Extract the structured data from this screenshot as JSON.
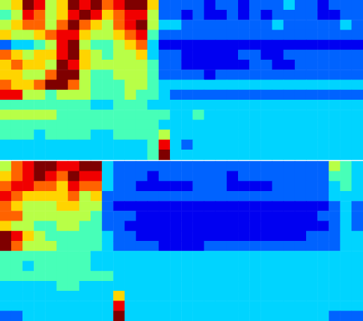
{
  "chart_data": [
    {
      "type": "heatmap",
      "color": "jet",
      "zlim": [
        0,
        9
      ],
      "tick_labels": false,
      "cells": [
        [
          5,
          6,
          9,
          8,
          5,
          6,
          9,
          8,
          9,
          7,
          8,
          9,
          9,
          6,
          2,
          2,
          2,
          2,
          1,
          2,
          2,
          1,
          2,
          2,
          2,
          3,
          2,
          2,
          1,
          2,
          2,
          2
        ],
        [
          4,
          5,
          8,
          7,
          5,
          6,
          8,
          9,
          8,
          6,
          7,
          8,
          8,
          5,
          2,
          2,
          1,
          2,
          1,
          1,
          2,
          1,
          2,
          1,
          2,
          2,
          2,
          2,
          1,
          1,
          2,
          2
        ],
        [
          5,
          6,
          7,
          7,
          5,
          7,
          9,
          7,
          6,
          5,
          7,
          8,
          9,
          5,
          3,
          3,
          2,
          2,
          2,
          2,
          2,
          2,
          2,
          2,
          3,
          2,
          2,
          2,
          2,
          2,
          3,
          2
        ],
        [
          6,
          5,
          5,
          6,
          7,
          8,
          8,
          6,
          5,
          5,
          6,
          7,
          8,
          4,
          2,
          2,
          2,
          2,
          2,
          2,
          2,
          2,
          2,
          2,
          2,
          2,
          2,
          2,
          2,
          2,
          2,
          2
        ],
        [
          2,
          3,
          3,
          4,
          5,
          8,
          9,
          5,
          4,
          4,
          5,
          6,
          7,
          3,
          1,
          1,
          1,
          1,
          1,
          1,
          1,
          1,
          1,
          1,
          1,
          1,
          1,
          1,
          1,
          1,
          1,
          1
        ],
        [
          7,
          6,
          5,
          6,
          6,
          8,
          9,
          6,
          5,
          4,
          5,
          5,
          6,
          3,
          2,
          2,
          1,
          1,
          1,
          1,
          1,
          2,
          2,
          1,
          1,
          2,
          2,
          2,
          2,
          2,
          2,
          2
        ],
        [
          6,
          7,
          6,
          6,
          5,
          9,
          8,
          6,
          5,
          5,
          5,
          5,
          5,
          4,
          2,
          2,
          1,
          1,
          1,
          1,
          1,
          1,
          2,
          2,
          1,
          1,
          2,
          2,
          2,
          2,
          2,
          2
        ],
        [
          6,
          6,
          5,
          5,
          7,
          9,
          9,
          5,
          4,
          4,
          5,
          5,
          5,
          4,
          2,
          2,
          2,
          2,
          1,
          2,
          2,
          2,
          2,
          2,
          2,
          2,
          2,
          2,
          2,
          2,
          2,
          2
        ],
        [
          7,
          6,
          6,
          7,
          9,
          9,
          7,
          5,
          4,
          4,
          4,
          5,
          5,
          4,
          3,
          3,
          3,
          3,
          3,
          3,
          3,
          3,
          3,
          3,
          3,
          3,
          3,
          3,
          3,
          3,
          3,
          3
        ],
        [
          8,
          8,
          5,
          5,
          4,
          5,
          5,
          5,
          4,
          4,
          4,
          5,
          4,
          4,
          3,
          2,
          2,
          2,
          2,
          2,
          2,
          2,
          2,
          2,
          2,
          2,
          2,
          2,
          2,
          2,
          2,
          2
        ],
        [
          4,
          4,
          4,
          4,
          4,
          4,
          4,
          4,
          3,
          3,
          4,
          4,
          4,
          3,
          3,
          3,
          3,
          3,
          3,
          3,
          3,
          3,
          3,
          3,
          3,
          3,
          3,
          3,
          3,
          3,
          3,
          3
        ],
        [
          5,
          5,
          5,
          5,
          5,
          4,
          4,
          4,
          4,
          4,
          4,
          4,
          4,
          4,
          4,
          3,
          3,
          4,
          3,
          3,
          3,
          3,
          3,
          3,
          3,
          3,
          3,
          3,
          3,
          3,
          3,
          3
        ],
        [
          4,
          4,
          4,
          4,
          4,
          4,
          4,
          4,
          4,
          4,
          4,
          4,
          4,
          4,
          3,
          3,
          3,
          3,
          3,
          3,
          3,
          3,
          3,
          3,
          3,
          3,
          3,
          3,
          3,
          3,
          3,
          3
        ],
        [
          4,
          4,
          4,
          3,
          4,
          4,
          4,
          4,
          3,
          3,
          4,
          4,
          4,
          4,
          5,
          3,
          3,
          3,
          3,
          3,
          3,
          3,
          3,
          3,
          3,
          3,
          3,
          3,
          3,
          3,
          3,
          3
        ],
        [
          3,
          3,
          3,
          3,
          3,
          3,
          3,
          3,
          3,
          3,
          3,
          3,
          3,
          4,
          8,
          3,
          2,
          3,
          3,
          3,
          3,
          3,
          3,
          3,
          3,
          3,
          3,
          3,
          3,
          3,
          3,
          3
        ],
        [
          3,
          3,
          3,
          3,
          3,
          3,
          3,
          3,
          3,
          3,
          3,
          3,
          3,
          4,
          9,
          3,
          3,
          3,
          3,
          3,
          3,
          3,
          3,
          3,
          3,
          3,
          3,
          3,
          3,
          3,
          3,
          3
        ]
      ]
    },
    {
      "type": "heatmap",
      "color": "jet",
      "zlim": [
        0,
        9
      ],
      "tick_labels": false,
      "cells": [
        [
          5,
          7,
          8,
          9,
          9,
          8,
          8,
          9,
          9,
          3,
          2,
          2,
          2,
          2,
          2,
          2,
          2,
          2,
          2,
          2,
          2,
          2,
          2,
          2,
          2,
          2,
          2,
          2,
          2,
          5,
          4,
          3
        ],
        [
          6,
          7,
          8,
          9,
          8,
          7,
          9,
          8,
          8,
          3,
          2,
          2,
          2,
          1,
          2,
          2,
          2,
          2,
          2,
          2,
          1,
          2,
          2,
          2,
          2,
          2,
          2,
          2,
          2,
          4,
          4,
          3
        ],
        [
          7,
          8,
          8,
          7,
          7,
          6,
          8,
          7,
          7,
          3,
          2,
          2,
          1,
          1,
          1,
          1,
          1,
          2,
          2,
          2,
          1,
          1,
          1,
          1,
          2,
          2,
          2,
          2,
          2,
          3,
          4,
          3
        ],
        [
          8,
          7,
          6,
          6,
          6,
          6,
          7,
          5,
          6,
          2,
          2,
          2,
          2,
          2,
          2,
          2,
          2,
          2,
          2,
          2,
          2,
          2,
          2,
          2,
          2,
          2,
          2,
          2,
          2,
          3,
          3,
          3
        ],
        [
          7,
          6,
          5,
          5,
          5,
          6,
          6,
          5,
          5,
          2,
          1,
          1,
          1,
          1,
          1,
          1,
          1,
          1,
          1,
          1,
          1,
          1,
          1,
          1,
          1,
          1,
          1,
          1,
          1,
          2,
          3,
          2
        ],
        [
          7,
          7,
          5,
          5,
          5,
          5,
          5,
          5,
          4,
          2,
          2,
          2,
          1,
          1,
          1,
          1,
          1,
          1,
          1,
          1,
          1,
          1,
          1,
          1,
          1,
          1,
          1,
          1,
          2,
          2,
          3,
          2
        ],
        [
          6,
          5,
          5,
          4,
          4,
          5,
          5,
          4,
          4,
          2,
          2,
          1,
          1,
          1,
          1,
          1,
          1,
          1,
          1,
          1,
          1,
          1,
          1,
          1,
          1,
          1,
          1,
          1,
          1,
          2,
          3,
          2
        ],
        [
          9,
          8,
          6,
          5,
          4,
          4,
          4,
          4,
          4,
          3,
          2,
          2,
          1,
          1,
          1,
          1,
          1,
          1,
          1,
          1,
          1,
          1,
          1,
          1,
          1,
          1,
          1,
          2,
          2,
          2,
          3,
          3
        ],
        [
          9,
          7,
          5,
          5,
          5,
          4,
          4,
          4,
          4,
          3,
          2,
          2,
          2,
          2,
          1,
          1,
          1,
          1,
          2,
          2,
          2,
          2,
          2,
          2,
          2,
          2,
          2,
          2,
          2,
          2,
          3,
          3
        ],
        [
          4,
          4,
          4,
          4,
          4,
          4,
          4,
          4,
          3,
          3,
          3,
          3,
          3,
          3,
          3,
          3,
          3,
          3,
          3,
          3,
          3,
          3,
          3,
          3,
          3,
          3,
          3,
          3,
          3,
          3,
          3,
          3
        ],
        [
          4,
          4,
          3,
          4,
          4,
          4,
          4,
          4,
          3,
          3,
          3,
          3,
          3,
          3,
          3,
          3,
          3,
          3,
          3,
          3,
          3,
          3,
          3,
          3,
          3,
          3,
          3,
          3,
          3,
          3,
          3,
          3
        ],
        [
          4,
          4,
          4,
          4,
          4,
          4,
          4,
          4,
          4,
          4,
          3,
          3,
          3,
          3,
          3,
          3,
          3,
          3,
          3,
          3,
          3,
          3,
          3,
          3,
          3,
          3,
          3,
          3,
          3,
          3,
          3,
          3
        ],
        [
          3,
          3,
          3,
          3,
          3,
          4,
          4,
          3,
          3,
          3,
          3,
          3,
          3,
          3,
          3,
          3,
          3,
          3,
          3,
          3,
          3,
          3,
          3,
          3,
          3,
          3,
          3,
          3,
          3,
          3,
          3,
          3
        ],
        [
          3,
          3,
          3,
          3,
          3,
          3,
          3,
          3,
          3,
          3,
          6,
          3,
          3,
          3,
          3,
          3,
          3,
          3,
          3,
          3,
          3,
          3,
          3,
          3,
          3,
          3,
          3,
          3,
          3,
          3,
          3,
          3
        ],
        [
          3,
          3,
          3,
          3,
          3,
          3,
          3,
          3,
          3,
          3,
          8,
          3,
          3,
          3,
          3,
          3,
          3,
          3,
          3,
          3,
          3,
          3,
          3,
          3,
          3,
          3,
          3,
          3,
          3,
          3,
          3,
          3
        ],
        [
          2,
          2,
          3,
          3,
          3,
          3,
          3,
          3,
          3,
          3,
          9,
          3,
          3,
          3,
          3,
          3,
          3,
          3,
          3,
          3,
          3,
          3,
          3,
          3,
          3,
          3,
          3,
          3,
          3,
          2,
          2,
          2
        ]
      ]
    }
  ]
}
